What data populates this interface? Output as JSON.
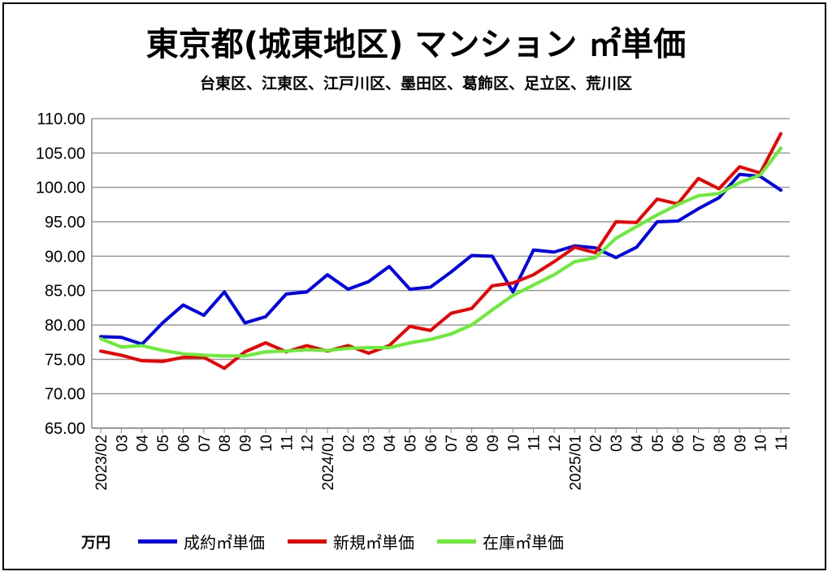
{
  "chart_data": {
    "type": "line",
    "title": "東京都(城東地区) マンション ㎡単価",
    "subtitle": "台東区、江東区、江戸川区、墨田区、葛飾区、足立区、荒川区",
    "ylabel": "万円",
    "ylim": [
      65,
      110
    ],
    "yticks": [
      "65.00",
      "70.00",
      "75.00",
      "80.00",
      "85.00",
      "90.00",
      "95.00",
      "100.00",
      "105.00",
      "110.00"
    ],
    "grid": true,
    "legend_position": "bottom",
    "categories": [
      "2023/02",
      "03",
      "04",
      "05",
      "06",
      "07",
      "08",
      "09",
      "10",
      "11",
      "12",
      "2024/01",
      "02",
      "03",
      "04",
      "05",
      "06",
      "07",
      "08",
      "09",
      "10",
      "11",
      "12",
      "2025/01",
      "02",
      "03",
      "04",
      "05",
      "06",
      "07",
      "08",
      "09",
      "10",
      "11"
    ],
    "series": [
      {
        "name": "成約㎡単価",
        "color": "#0000ee",
        "values": [
          78.3,
          78.2,
          77.2,
          80.3,
          82.9,
          81.4,
          84.8,
          80.3,
          81.2,
          84.5,
          84.8,
          87.3,
          85.2,
          86.3,
          88.5,
          85.2,
          85.5,
          87.7,
          90.1,
          90.0,
          84.8,
          90.9,
          90.6,
          91.5,
          91.2,
          89.8,
          91.3,
          95.0,
          95.1,
          96.9,
          98.5,
          101.9,
          101.6,
          99.6
        ]
      },
      {
        "name": "新規㎡単価",
        "color": "#ee0000",
        "values": [
          76.2,
          75.6,
          74.8,
          74.7,
          75.3,
          75.3,
          73.7,
          76.1,
          77.4,
          76.1,
          77.0,
          76.2,
          77.0,
          75.9,
          77.0,
          79.8,
          79.2,
          81.7,
          82.4,
          85.7,
          86.1,
          87.3,
          89.2,
          91.3,
          90.5,
          95.0,
          94.9,
          98.3,
          97.6,
          101.3,
          99.8,
          103.0,
          102.1,
          107.8
        ]
      },
      {
        "name": "在庫㎡単価",
        "color": "#66ee33",
        "values": [
          78.0,
          76.8,
          77.0,
          76.3,
          75.8,
          75.6,
          75.5,
          75.5,
          76.1,
          76.2,
          76.4,
          76.3,
          76.6,
          76.7,
          76.7,
          77.4,
          77.9,
          78.7,
          80.0,
          82.2,
          84.3,
          85.8,
          87.3,
          89.2,
          89.8,
          92.6,
          94.3,
          96.0,
          97.5,
          98.8,
          99.1,
          100.7,
          101.8,
          105.7
        ]
      }
    ]
  }
}
